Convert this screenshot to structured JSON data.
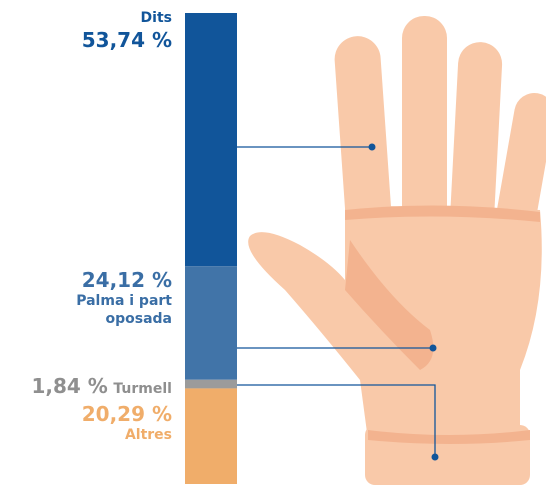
{
  "chart_data": {
    "type": "stacked-bar",
    "series": [
      {
        "name": "Dits",
        "color": "#11559a",
        "values": [
          53.74
        ],
        "value_labels": [
          "53,74 %"
        ]
      },
      {
        "name": "Palma i part oposada",
        "color": "#4174a8",
        "values": [
          24.12
        ],
        "value_labels": [
          "24,12 %"
        ]
      },
      {
        "name": "Turmell",
        "color": "#9b9b9b",
        "values": [
          1.84
        ],
        "value_labels": [
          "1,84 %"
        ]
      },
      {
        "name": "Altres",
        "color": "#f0ad6a",
        "values": [
          20.29
        ],
        "value_labels": [
          "20,29 %"
        ]
      }
    ]
  }
}
